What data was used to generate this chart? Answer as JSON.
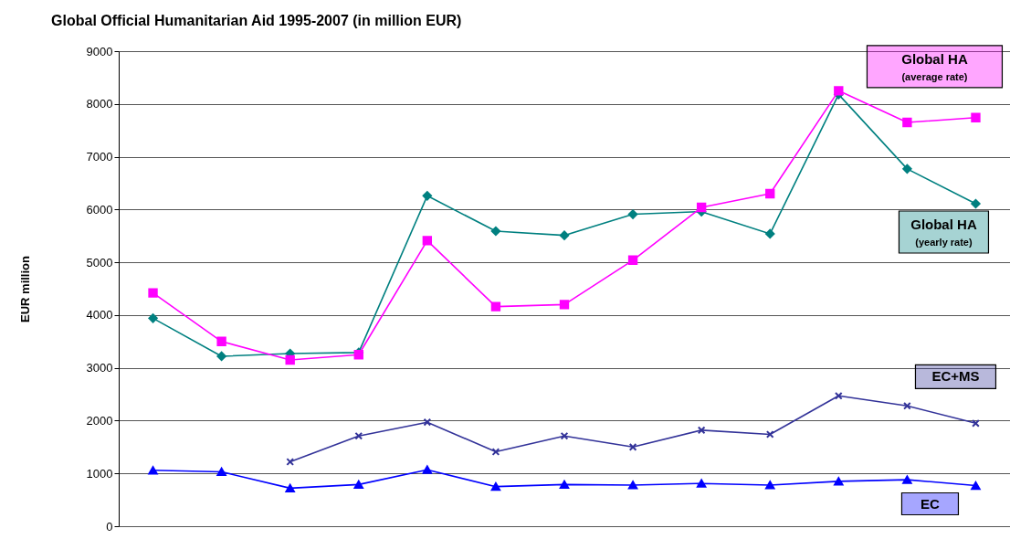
{
  "chart_data": {
    "type": "line",
    "title": "Global Official Humanitarian Aid 1995-2007 (in million EUR)",
    "ylabel": "EUR million",
    "categories": [
      null,
      null,
      null,
      null,
      null,
      null,
      null,
      null,
      null,
      null,
      null,
      null,
      null
    ],
    "series": [
      {
        "name": "Global HA (average rate)",
        "color": "#ff00ff",
        "marker": "square",
        "values": [
          4420,
          3500,
          3150,
          3250,
          5410,
          4160,
          4200,
          5040,
          6040,
          6300,
          8250,
          7650,
          7740
        ]
      },
      {
        "name": "Global HA (yearly rate)",
        "color": "#008080",
        "marker": "diamond",
        "values": [
          3940,
          3220,
          3270,
          3290,
          6260,
          5590,
          5510,
          5910,
          5960,
          5540,
          8180,
          6770,
          6110
        ]
      },
      {
        "name": "EC+MS",
        "color": "#333399",
        "marker": "cross",
        "values": [
          null,
          null,
          1220,
          1710,
          1970,
          1410,
          1710,
          1500,
          1820,
          1740,
          2470,
          2280,
          1950
        ]
      },
      {
        "name": "EC",
        "color": "#0000ff",
        "marker": "triangle",
        "values": [
          1060,
          1030,
          720,
          790,
          1070,
          750,
          790,
          780,
          810,
          780,
          850,
          880,
          770
        ]
      }
    ],
    "ylim": [
      0,
      9000
    ],
    "yticks": [
      0,
      1000,
      2000,
      3000,
      4000,
      5000,
      6000,
      7000,
      8000,
      9000
    ],
    "grid": "y",
    "legend": false,
    "tick_labels": "y",
    "line_style": "solid"
  }
}
